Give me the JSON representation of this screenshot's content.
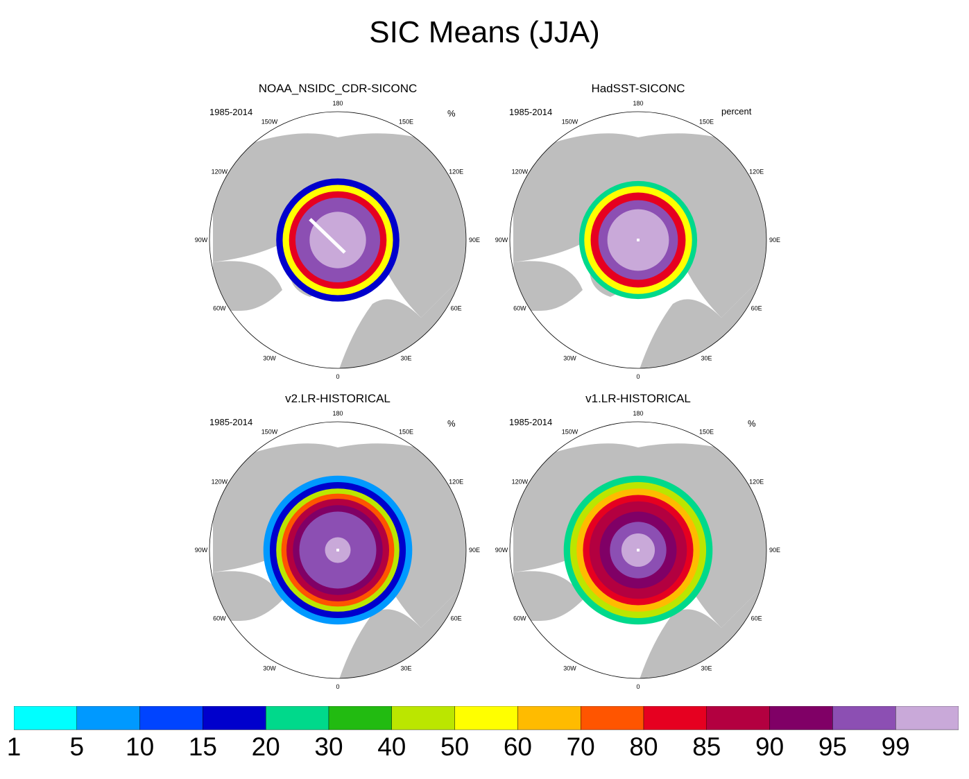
{
  "title": "SIC Means (JJA)",
  "panels": [
    {
      "title": "NOAA_NSIDC_CDR-SICONC",
      "period": "1985-2014",
      "units": "%",
      "rings": [
        {
          "level": 10,
          "r": 0.48
        },
        {
          "level": 40,
          "r": 0.43
        },
        {
          "level": 70,
          "r": 0.38
        },
        {
          "level": 90,
          "r": 0.33
        },
        {
          "level": 99,
          "r": 0.22
        }
      ],
      "extra": "swath"
    },
    {
      "title": "HadSST-SICONC",
      "period": "1985-2014",
      "units": "percent",
      "rings": [
        {
          "level": 15,
          "r": 0.46
        },
        {
          "level": 40,
          "r": 0.42
        },
        {
          "level": 70,
          "r": 0.37
        },
        {
          "level": 90,
          "r": 0.31
        },
        {
          "level": 95,
          "r": 0.24
        },
        {
          "level": 99,
          "r": 0.16
        }
      ],
      "extra": "pole"
    },
    {
      "title": "v2.LR-HISTORICAL",
      "period": "1985-2014",
      "units": "%",
      "rings": [
        {
          "level": 1,
          "r": 0.58
        },
        {
          "level": 10,
          "r": 0.53
        },
        {
          "level": 30,
          "r": 0.48
        },
        {
          "level": 60,
          "r": 0.44
        },
        {
          "level": 80,
          "r": 0.4
        },
        {
          "level": 85,
          "r": 0.35
        },
        {
          "level": 90,
          "r": 0.3
        },
        {
          "level": 95,
          "r": 0.1
        }
      ],
      "extra": "pole"
    },
    {
      "title": "v1.LR-HISTORICAL",
      "period": "1985-2014",
      "units": "%",
      "rings": [
        {
          "level": 15,
          "r": 0.58
        },
        {
          "level": 30,
          "r": 0.53
        },
        {
          "level": 50,
          "r": 0.48
        },
        {
          "level": 70,
          "r": 0.43
        },
        {
          "level": 80,
          "r": 0.38
        },
        {
          "level": 85,
          "r": 0.3
        },
        {
          "level": 90,
          "r": 0.22
        },
        {
          "level": 95,
          "r": 0.13
        }
      ],
      "extra": "pole"
    }
  ],
  "lon_labels": [
    "180",
    "150E",
    "120E",
    "90E",
    "60E",
    "30E",
    "0",
    "30W",
    "60W",
    "90W",
    "120W",
    "150W"
  ],
  "colorbar": {
    "levels": [
      "1",
      "5",
      "10",
      "15",
      "20",
      "30",
      "40",
      "50",
      "60",
      "70",
      "80",
      "85",
      "90",
      "95",
      "99"
    ],
    "colors": [
      "#00ffff",
      "#0099ff",
      "#0044ff",
      "#0000cc",
      "#00d98b",
      "#22bb11",
      "#bbe600",
      "#ffff00",
      "#ffbb00",
      "#ff5500",
      "#e60020",
      "#b30040",
      "#800066",
      "#8c4fb3",
      "#c9a9d9"
    ]
  },
  "land_color": "#bebebe"
}
